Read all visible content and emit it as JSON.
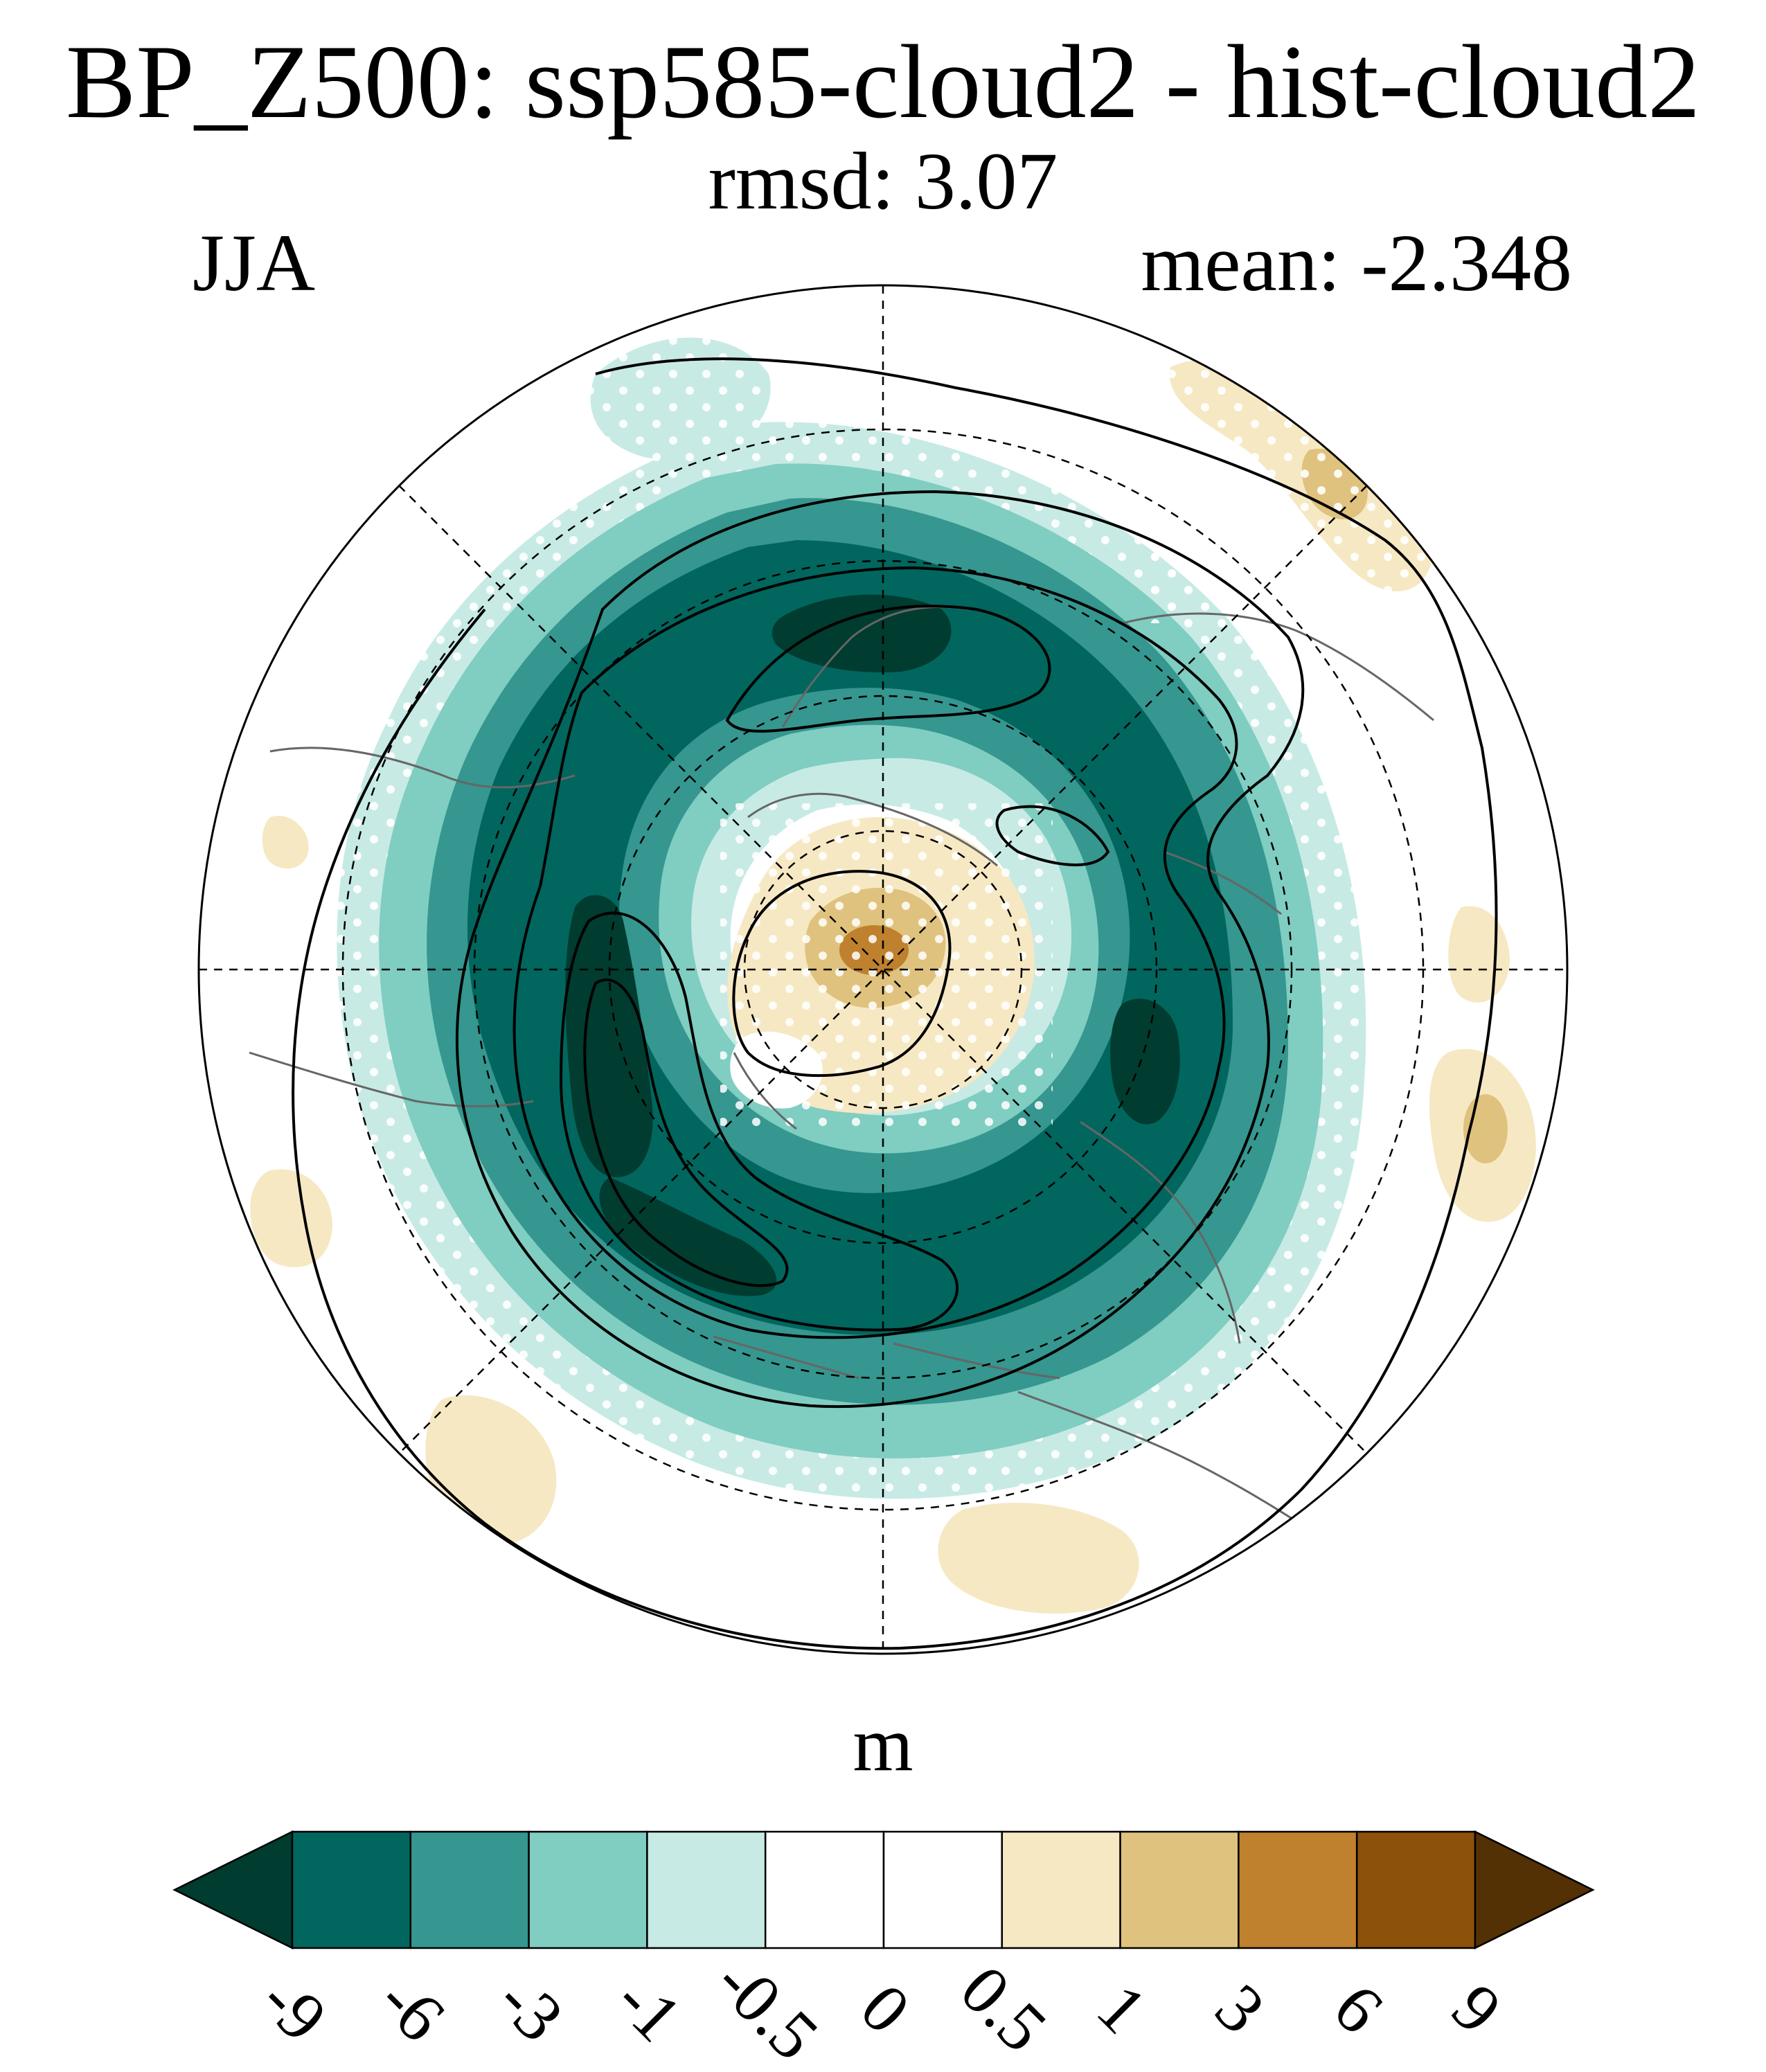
{
  "figure": {
    "title": "BP_Z500: ssp585-cloud2 - hist-cloud2",
    "subtitle": "rmsd: 3.07",
    "season": "JJA",
    "mean": "mean: -2.348"
  },
  "colorbar": {
    "units": "m",
    "labels": [
      "-9",
      "-6",
      "-3",
      "-1",
      "-0.5",
      "0",
      "0.5",
      "1",
      "3",
      "6",
      "9"
    ],
    "colors": [
      "#003c30",
      "#01665e",
      "#35978f",
      "#80cdc1",
      "#c7eae5",
      "#ffffff",
      "#ffffff",
      "#f6e8c3",
      "#dfc27d",
      "#bf812d",
      "#8c510a",
      "#543005"
    ]
  },
  "map": {
    "projection": "north-polar-stereographic",
    "field": "Z500 difference",
    "colors": {
      "deep_teal": "#01665e",
      "darkest_teal": "#003c30",
      "mid_teal": "#35978f",
      "light_teal": "#80cdc1",
      "pale_teal": "#c7eae5",
      "pale_tan": "#f6e8c3",
      "tan": "#dfc27d",
      "brown": "#bf812d",
      "coast": "#666666",
      "contour": "#000000"
    }
  }
}
